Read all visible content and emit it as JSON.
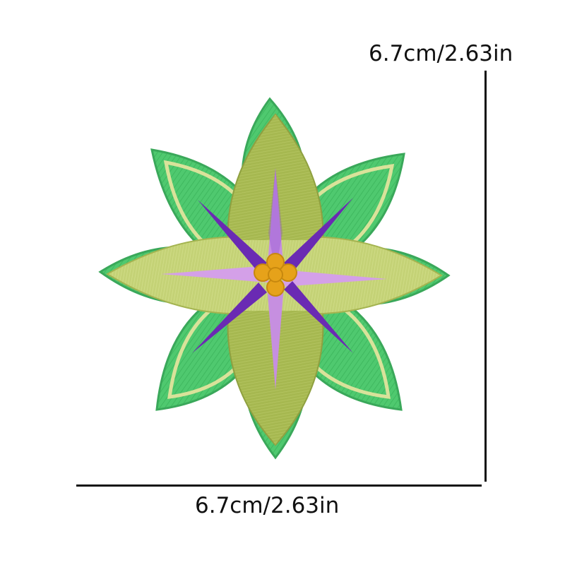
{
  "dimensions": {
    "height_label": "6.7cm/2.63in",
    "width_label": "6.7cm/2.63in"
  },
  "patch": {
    "icon": "flower-patch-icon",
    "colors": {
      "outer_petal": "#4fc96f",
      "outer_border": "#d9e29a",
      "inner_petal": "#a6b850",
      "inner_petal_light": "#c7d67a",
      "star_dark": "#6a2ab3",
      "star_light": "#c68fe0",
      "center": "#e6a21a"
    }
  }
}
